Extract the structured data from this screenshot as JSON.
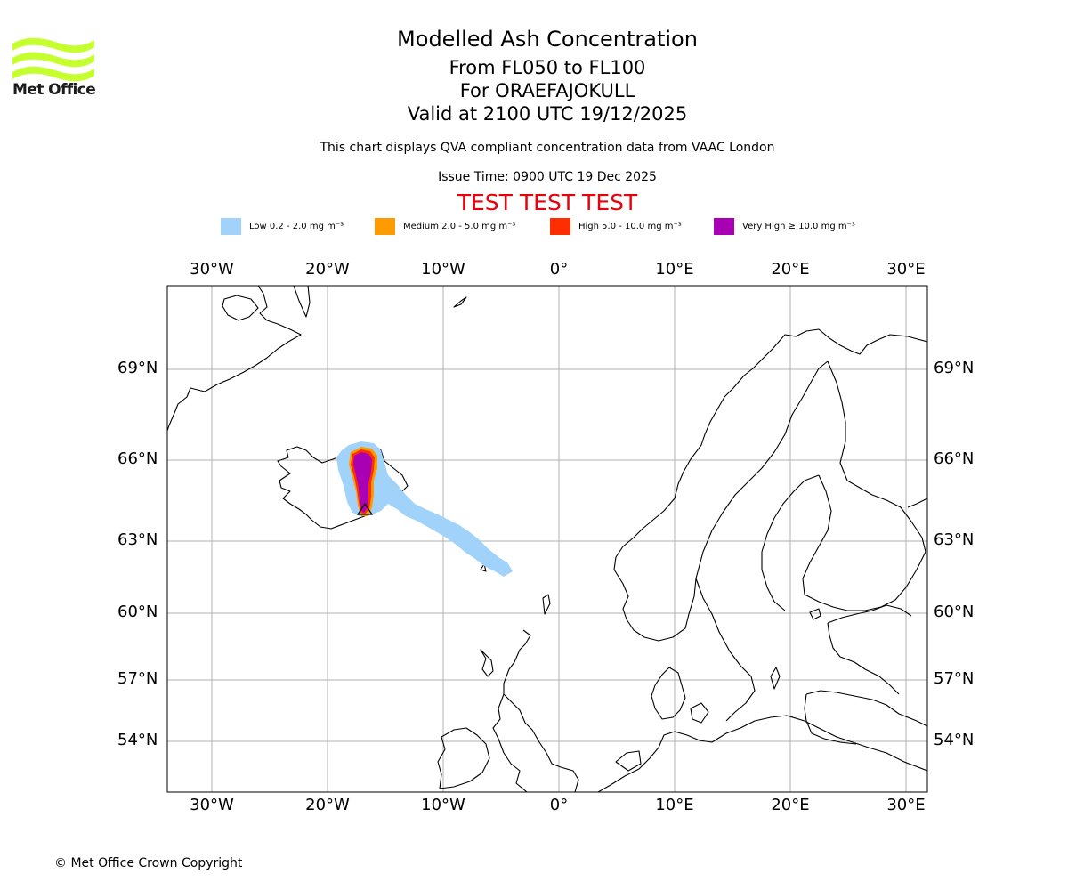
{
  "logo": {
    "text": "Met Office",
    "color": "#c6ff2e",
    "icon": "met-office-wave-logo"
  },
  "title": {
    "main": "Modelled Ash Concentration",
    "levels": "From FL050 to FL100",
    "volcano": "For ORAEFAJOKULL",
    "valid": "Valid at 2100 UTC 19/12/2025"
  },
  "subtitle": {
    "compliance": "This chart displays QVA compliant concentration data from VAAC London",
    "issue_time": "Issue Time: 0900 UTC 19 Dec 2025"
  },
  "test_banner": "TEST TEST TEST",
  "legend": [
    {
      "label": "Low 0.2 - 2.0 mg m⁻³",
      "color": "#a0d2fa"
    },
    {
      "label": "Medium 2.0 - 5.0 mg m⁻³",
      "color": "#ff9a00"
    },
    {
      "label": "High 5.0 - 10.0 mg m⁻³",
      "color": "#ff2e00"
    },
    {
      "label": "Very High ≥ 10.0 mg m⁻³",
      "color": "#aa00b4"
    }
  ],
  "longitude_labels": [
    "30°W",
    "20°W",
    "10°W",
    "0°",
    "10°E",
    "20°E",
    "30°E"
  ],
  "latitude_labels": [
    "69°N",
    "66°N",
    "63°N",
    "60°N",
    "57°N",
    "54°N"
  ],
  "copyright": "© Met Office Crown Copyright"
}
